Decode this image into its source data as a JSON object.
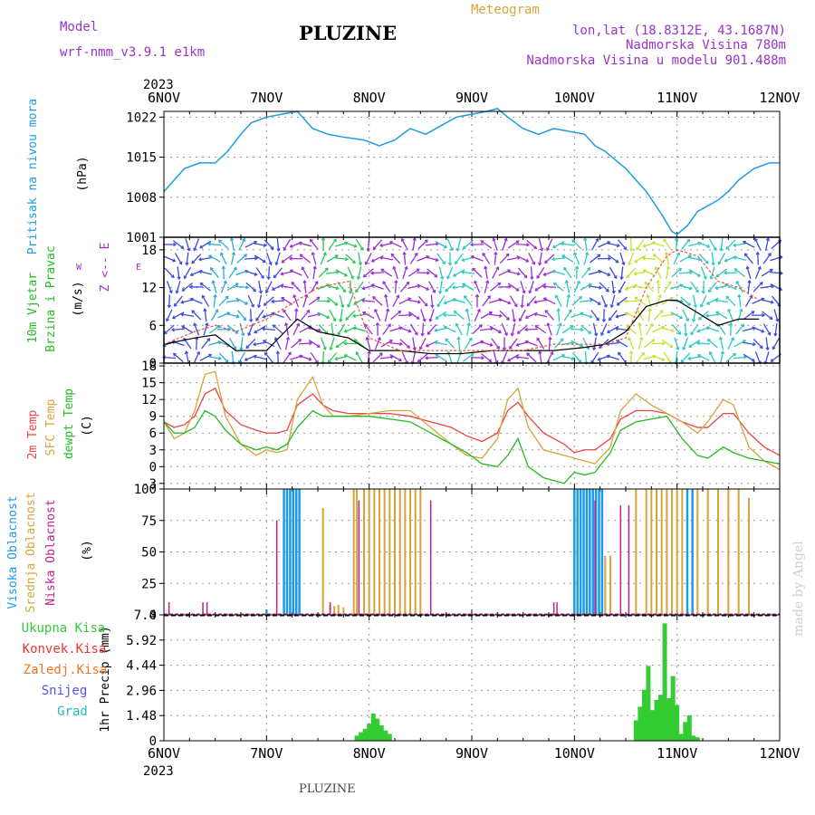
{
  "header": {
    "model_label": "Model",
    "model_name": "wrf-nmm_v3.9.1  e1km",
    "station": "PLUZINE",
    "product": "Meteogram",
    "lonlat": "lon,lat (18.8312E, 43.1687N)",
    "elevation": "Nadmorska Visina 780m",
    "model_elevation": "Nadmorska Visina u modelu 901.488m",
    "year_top": "2023",
    "year_bottom": "2023",
    "footer_station": "PLUZINE",
    "credit": "made by Angel"
  },
  "colors": {
    "pressure": "#1e9be6",
    "temp2m": "#ee4444",
    "sfc": "#d6a43a",
    "dew": "#22bb22",
    "high_cloud": "#1e9be6",
    "mid_cloud": "#d6a43a",
    "low_cloud": "#c0208c",
    "precip": "#33cc33",
    "purple": "#9933cc"
  },
  "chart_data": [
    {
      "type": "line",
      "panel": "pressure",
      "ylabel": [
        "Pritisak na nivou mora",
        "(hPa)"
      ],
      "ylim": [
        1001,
        1023
      ],
      "yticks": [
        "1022",
        "1015",
        "1008",
        "1001"
      ],
      "x_days": [
        0,
        0.05,
        0.2,
        0.35,
        0.5,
        0.62,
        0.75,
        0.85,
        1.0,
        1.15,
        1.3,
        1.45,
        1.6,
        1.75,
        1.95,
        2.1,
        2.25,
        2.4,
        2.55,
        2.7,
        2.85,
        3.0,
        3.15,
        3.25,
        3.35,
        3.5,
        3.65,
        3.8,
        3.95,
        4.1,
        4.2,
        4.3,
        4.5,
        4.7,
        4.85,
        4.95,
        5.0,
        5.1,
        5.2,
        5.3,
        5.4,
        5.5,
        5.6,
        5.75,
        5.9,
        6.0
      ],
      "series": [
        {
          "name": "",
          "values": [
            1009,
            1010,
            1013,
            1014,
            1014,
            1016,
            1019,
            1021,
            1022,
            1022.5,
            1023,
            1020,
            1019,
            1018.5,
            1018,
            1017,
            1018,
            1020,
            1019,
            1020.5,
            1022,
            1022.5,
            1023,
            1023.5,
            1022,
            1020,
            1019,
            1020,
            1019.5,
            1019,
            1017,
            1016,
            1013,
            1009,
            1005,
            1002,
            1001.5,
            1003,
            1005.5,
            1006.5,
            1007.5,
            1009,
            1011,
            1013,
            1014,
            1014
          ]
        }
      ]
    },
    {
      "type": "line",
      "panel": "wind",
      "ylabel": [
        "10m Vjetar",
        "Brzina i Pravac",
        "(m/s)"
      ],
      "legend_compass": [
        "Z",
        "<--",
        "E",
        "W",
        "<",
        "S"
      ],
      "ylim": [
        0,
        20
      ],
      "yticks": [
        "18",
        "12",
        "6",
        "0"
      ],
      "x_days": [
        0,
        0.3,
        0.5,
        0.7,
        1.0,
        1.3,
        1.5,
        1.8,
        2.0,
        2.3,
        2.6,
        2.9,
        3.2,
        3.5,
        3.8,
        4.1,
        4.3,
        4.5,
        4.7,
        4.9,
        5.0,
        5.2,
        5.4,
        5.6,
        5.8
      ],
      "series": [
        {
          "name": "",
          "values": [
            3,
            4,
            4.5,
            2,
            2,
            7,
            5,
            4,
            2,
            2,
            1.5,
            1.5,
            2,
            2,
            2,
            2.5,
            3,
            5,
            9,
            10,
            10,
            8,
            6,
            7,
            7
          ]
        },
        {
          "name": "",
          "values": [
            3,
            5,
            6,
            5,
            7,
            10,
            12,
            13,
            4,
            2,
            2,
            2,
            2,
            2,
            3,
            3,
            3,
            4,
            12,
            17,
            18,
            17,
            13,
            12,
            10
          ]
        }
      ],
      "arrow_color_bands": [
        "#3b4be0",
        "#2aa8e0",
        "#3b4be0",
        "#9b2fd6",
        "#2ac85a",
        "#9b2fd6",
        "#9b2fd6",
        "#2ac8c0",
        "#9b2fd6",
        "#9b2fd6",
        "#2ac8c0",
        "#3b4be0",
        "#c8e030",
        "#2ac8c0",
        "#2ac8c0",
        "#3b4be0"
      ]
    },
    {
      "type": "line",
      "panel": "temperature",
      "ylabel": [
        "2m Temp",
        "SFC Temp",
        "dewpt Temp",
        "(C)"
      ],
      "ylim": [
        -4,
        18.5
      ],
      "yticks": [
        "18",
        "15",
        "12",
        "9",
        "6",
        "3",
        "0",
        "-3"
      ],
      "x_days": [
        0,
        0.1,
        0.2,
        0.3,
        0.4,
        0.5,
        0.6,
        0.75,
        0.9,
        1.0,
        1.1,
        1.2,
        1.3,
        1.45,
        1.55,
        1.65,
        1.8,
        2.0,
        2.2,
        2.4,
        2.6,
        2.8,
        2.95,
        3.1,
        3.25,
        3.35,
        3.45,
        3.55,
        3.7,
        3.9,
        4.0,
        4.1,
        4.2,
        4.35,
        4.45,
        4.6,
        4.75,
        4.9,
        5.05,
        5.2,
        5.3,
        5.45,
        5.55,
        5.7,
        5.85,
        6.0
      ],
      "series": [
        {
          "name": "2m Temp",
          "values": [
            8,
            7,
            7.5,
            9,
            13,
            14,
            10,
            7.5,
            6.5,
            6,
            6,
            6.5,
            11,
            13,
            11,
            10,
            9.5,
            9.5,
            9.5,
            9,
            8,
            7,
            5.5,
            4.5,
            6,
            10,
            11.5,
            9,
            6,
            4,
            2.5,
            3,
            3,
            5,
            8.5,
            10,
            10,
            9.5,
            8,
            7,
            7,
            9.5,
            9.5,
            6,
            3.5,
            2
          ]
        },
        {
          "name": "SFC Temp",
          "values": [
            8,
            5,
            6,
            10,
            16.5,
            17,
            9,
            4,
            2,
            3,
            2.5,
            3,
            12,
            16,
            11,
            9,
            9,
            9.5,
            10,
            10,
            7,
            4,
            2,
            1.5,
            5,
            12,
            14,
            7,
            3,
            2,
            1.5,
            1,
            0.5,
            3.5,
            10,
            13,
            11,
            9.5,
            8,
            6,
            8,
            12,
            11,
            3.5,
            1,
            -0.5
          ]
        },
        {
          "name": "dewpt Temp",
          "values": [
            8,
            6,
            6,
            7,
            10,
            9,
            6.5,
            4,
            3,
            3.5,
            3,
            4,
            7,
            10,
            9,
            9,
            9,
            9,
            8.5,
            8,
            6,
            4,
            2.5,
            0.5,
            0,
            2,
            5,
            0,
            -2,
            -3,
            -1,
            -1.5,
            -1,
            2.5,
            6.5,
            8,
            8.5,
            9,
            5,
            2,
            1.5,
            3.5,
            2.5,
            1.5,
            1,
            0.5
          ]
        }
      ]
    },
    {
      "type": "bar",
      "panel": "cloud",
      "ylabel": [
        "Visoka Oblacnost",
        "Srednja Oblacnost",
        "Niska Oblacnost",
        "(%)"
      ],
      "ylim": [
        0,
        100
      ],
      "yticks": [
        "100",
        "75",
        "50",
        "25",
        "0"
      ],
      "series": [
        {
          "name": "Visoka Oblacnost",
          "x_days": [
            1.0,
            1.17,
            1.2,
            1.23,
            1.26,
            1.29,
            1.32,
            4.0,
            4.03,
            4.06,
            4.09,
            4.12,
            4.15,
            4.18,
            4.21,
            4.24,
            4.27,
            5.1,
            5.15
          ],
          "values": [
            4,
            100,
            100,
            100,
            100,
            100,
            100,
            100,
            100,
            100,
            100,
            100,
            100,
            100,
            100,
            100,
            100,
            100,
            100
          ]
        },
        {
          "name": "Srednja Oblacnost",
          "x_days": [
            1.55,
            1.62,
            1.66,
            1.7,
            1.75,
            1.85,
            1.88,
            1.95,
            2.0,
            2.05,
            2.1,
            2.15,
            2.2,
            2.25,
            2.3,
            2.35,
            2.4,
            2.45,
            2.5,
            4.3,
            4.35,
            4.6,
            4.7,
            4.75,
            4.8,
            4.85,
            4.9,
            4.95,
            5.0,
            5.05,
            5.2,
            5.3,
            5.4,
            5.5,
            5.6,
            5.7
          ],
          "values": [
            85,
            8,
            7,
            8,
            6,
            100,
            100,
            100,
            100,
            100,
            100,
            100,
            100,
            100,
            100,
            100,
            100,
            100,
            100,
            47,
            47,
            100,
            100,
            100,
            100,
            100,
            100,
            100,
            100,
            100,
            100,
            100,
            100,
            100,
            100,
            93
          ]
        },
        {
          "name": "Niska Oblacnost",
          "x_days": [
            0.05,
            0.38,
            0.42,
            1.1,
            1.62,
            1.9,
            2.6,
            3.8,
            3.83,
            4.2,
            4.45,
            4.53
          ],
          "values": [
            10,
            10,
            10,
            75,
            10,
            91,
            91,
            10,
            10,
            91,
            87,
            87
          ]
        }
      ]
    },
    {
      "type": "bar",
      "panel": "precip",
      "ylabel": "1hr Precip (mm)",
      "legend": [
        "Ukupna Kisa",
        "Konvek.Kisa",
        "Zaledj.Kisa",
        "Snijeg",
        "Grad"
      ],
      "ylim": [
        0,
        7.4
      ],
      "yticks": [
        "7.4",
        "5.92",
        "4.44",
        "2.96",
        "1.48",
        "0"
      ],
      "x_days": [
        1.88,
        1.92,
        1.96,
        2.0,
        2.04,
        2.08,
        2.12,
        2.16,
        2.2,
        4.6,
        4.64,
        4.68,
        4.72,
        4.76,
        4.8,
        4.84,
        4.88,
        4.92,
        4.96,
        5.0,
        5.04,
        5.08,
        5.12,
        5.16,
        5.2
      ],
      "values": [
        0.3,
        0.5,
        0.7,
        1.0,
        1.6,
        1.3,
        0.9,
        0.6,
        0.4,
        1.2,
        2.0,
        3.0,
        4.4,
        1.8,
        2.4,
        2.7,
        6.9,
        2.5,
        3.8,
        2.1,
        0.4,
        1.1,
        1.5,
        0.3,
        0.2
      ]
    }
  ],
  "x_axis": {
    "ticks": [
      "6NOV",
      "7NOV",
      "8NOV",
      "9NOV",
      "10NOV",
      "11NOV",
      "12NOV"
    ]
  }
}
